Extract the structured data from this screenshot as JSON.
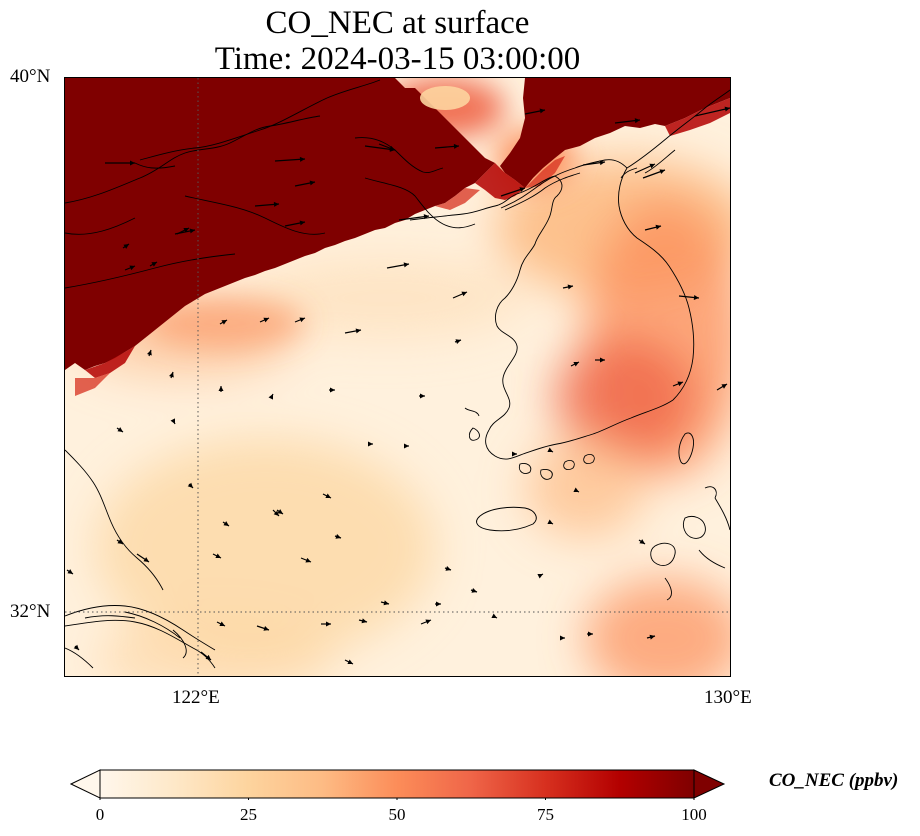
{
  "title_line1": "CO_NEC at surface",
  "title_line2": "Time: 2024-03-15 03:00:00",
  "lat_ticks": [
    "40°N",
    "32°N"
  ],
  "lon_ticks": [
    "122°E",
    "130°E"
  ],
  "colorbar": {
    "label": "CO_NEC (ppbv)",
    "ticks": [
      "0",
      "25",
      "50",
      "75",
      "100"
    ],
    "colormap": "OrRd",
    "extend": "both",
    "colors": [
      "#fff7ec",
      "#fee8c8",
      "#fdd49e",
      "#fdbb84",
      "#fc8d59",
      "#ef6548",
      "#d7301f",
      "#b30000",
      "#7f0000"
    ]
  },
  "map": {
    "projection": "Mercator",
    "lon_range": [
      120,
      130
    ],
    "lat_range": [
      31,
      40
    ],
    "gridlines": "dotted at 122°E and 32°N",
    "field_variable": "CO_NEC",
    "vectors": "surface wind arrows"
  }
}
